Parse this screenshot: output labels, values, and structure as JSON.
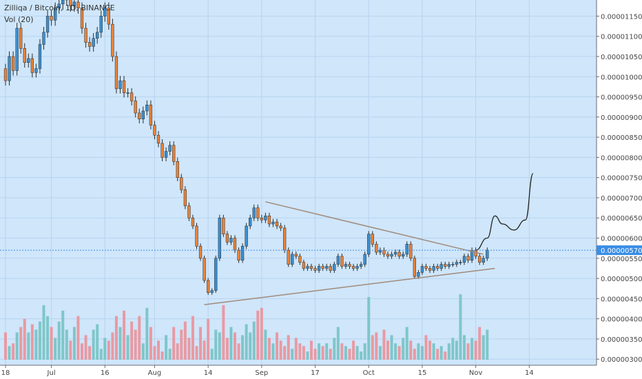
{
  "header": {
    "title": "Zilliqa / Bitcoin, 1D, BINANCE",
    "volume_label": "Vol (20)"
  },
  "colors": {
    "background": "#cfe6fb",
    "up_candle": "#3d8fcf",
    "down_candle": "#e8833a",
    "wick": "#2b2b2b",
    "vol_up": "#7fc6c9",
    "vol_down": "#e89aa3",
    "trendline": "#a08a7a",
    "price_line": "#3a8ee6",
    "price_tag": "#3a8ee6",
    "axis_bg": "#ffffff",
    "text": "#444444"
  },
  "chart_data": {
    "type": "candlestick",
    "symbol": "Zilliqa / Bitcoin, 1D, BINANCE",
    "y_axis": {
      "ylim": [
        2.85e-06,
        1.19e-05
      ],
      "ticks": [
        "0.00000300",
        "0.00000350",
        "0.00000400",
        "0.00000450",
        "0.00000500",
        "0.00000550",
        "0.00000600",
        "0.00000650",
        "0.00000700",
        "0.00000750",
        "0.00000800",
        "0.00000850",
        "0.00000900",
        "0.00000950",
        "0.00001000",
        "0.00001050",
        "0.00001100",
        "0.00001150"
      ],
      "tick_values": [
        3e-06,
        3.5e-06,
        4e-06,
        4.5e-06,
        5e-06,
        5.5e-06,
        6e-06,
        6.5e-06,
        7e-06,
        7.5e-06,
        8e-06,
        8.5e-06,
        9e-06,
        9.5e-06,
        1e-05,
        1.05e-05,
        1.1e-05,
        1.15e-05
      ]
    },
    "x_axis": {
      "labels": [
        "18",
        "Jul",
        "16",
        "Aug",
        "14",
        "Sep",
        "17",
        "Oct",
        "15",
        "Nov",
        "14"
      ],
      "label_days": [
        0,
        12,
        26,
        39,
        53,
        67,
        81,
        95,
        109,
        123,
        137
      ]
    },
    "current_price": {
      "value": 5.7e-06,
      "label": "0.00000570"
    },
    "closes": [
      9.9e-06,
      1.05e-05,
      1.015e-05,
      1.12e-05,
      1.07e-05,
      1.035e-05,
      1.045e-05,
      1.01e-05,
      1.02e-05,
      1.08e-05,
      1.11e-05,
      1.15e-05,
      1.14e-05,
      1.17e-05,
      1.18e-05,
      1.19e-05,
      1.195e-05,
      1.175e-05,
      1.185e-05,
      1.17e-05,
      1.12e-05,
      1.085e-05,
      1.075e-05,
      1.095e-05,
      1.11e-05,
      1.15e-05,
      1.17e-05,
      1.13e-05,
      1.05e-05,
      9.7e-06,
      9.9e-06,
      9.6e-06,
      9.6e-06,
      9.4e-06,
      9.1e-06,
      8.95e-06,
      9.15e-06,
      9.3e-06,
      8.8e-06,
      8.55e-06,
      8.35e-06,
      8e-06,
      8.15e-06,
      8.3e-06,
      7.9e-06,
      7.5e-06,
      7.2e-06,
      6.8e-06,
      6.5e-06,
      6.3e-06,
      5.8e-06,
      5.5e-06,
      4.95e-06,
      4.65e-06,
      4.7e-06,
      5.5e-06,
      6.5e-06,
      6.1e-06,
      5.9e-06,
      6e-06,
      5.7e-06,
      5.45e-06,
      5.8e-06,
      6.3e-06,
      6.5e-06,
      6.75e-06,
      6.5e-06,
      6.45e-06,
      6.55e-06,
      6.35e-06,
      6.4e-06,
      6.3e-06,
      6.25e-06,
      5.7e-06,
      5.35e-06,
      5.6e-06,
      5.55e-06,
      5.4e-06,
      5.25e-06,
      5.3e-06,
      5.25e-06,
      5.2e-06,
      5.3e-06,
      5.25e-06,
      5.3e-06,
      5.2e-06,
      5.35e-06,
      5.55e-06,
      5.3e-06,
      5.35e-06,
      5.3e-06,
      5.25e-06,
      5.3e-06,
      5.35e-06,
      5.6e-06,
      6.1e-06,
      5.85e-06,
      5.65e-06,
      5.7e-06,
      5.6e-06,
      5.55e-06,
      5.6e-06,
      5.65e-06,
      5.55e-06,
      5.6e-06,
      5.85e-06,
      5.5e-06,
      5.05e-06,
      5.15e-06,
      5.3e-06,
      5.25e-06,
      5.2e-06,
      5.3e-06,
      5.25e-06,
      5.35e-06,
      5.3e-06,
      5.35e-06,
      5.35e-06,
      5.4e-06,
      5.4e-06,
      5.55e-06,
      5.45e-06,
      5.7e-06,
      5.55e-06,
      5.4e-06,
      5.5e-06,
      5.7e-06
    ],
    "volumes": [
      0.5,
      0.25,
      0.3,
      0.5,
      0.6,
      0.75,
      0.5,
      0.65,
      0.55,
      0.7,
      1.0,
      0.8,
      0.6,
      0.4,
      0.7,
      0.9,
      0.55,
      0.35,
      0.6,
      0.8,
      0.3,
      0.45,
      0.25,
      0.55,
      0.65,
      0.2,
      0.4,
      0.35,
      0.5,
      0.8,
      0.6,
      0.9,
      0.45,
      0.7,
      0.55,
      0.8,
      0.3,
      0.95,
      0.6,
      0.25,
      0.35,
      0.15,
      0.45,
      0.2,
      0.6,
      0.3,
      0.55,
      0.7,
      0.4,
      0.8,
      0.25,
      0.6,
      0.35,
      0.75,
      0.2,
      0.55,
      0.5,
      1.0,
      0.4,
      0.6,
      0.5,
      0.3,
      0.45,
      0.65,
      0.5,
      0.7,
      0.9,
      0.95,
      0.55,
      0.4,
      0.3,
      0.5,
      0.35,
      0.25,
      0.45,
      0.2,
      0.4,
      0.3,
      0.25,
      0.15,
      0.35,
      0.2,
      0.3,
      0.25,
      0.3,
      0.2,
      0.4,
      0.6,
      0.3,
      0.25,
      0.2,
      0.35,
      0.25,
      0.15,
      0.3,
      1.15,
      0.45,
      0.5,
      0.25,
      0.55,
      0.35,
      0.45,
      0.3,
      0.25,
      0.4,
      0.6,
      0.35,
      0.2,
      0.3,
      0.25,
      0.45,
      0.35,
      0.3,
      0.2,
      0.25,
      0.15,
      0.3,
      0.4,
      0.35,
      1.2,
      0.45,
      0.3,
      0.4,
      0.35,
      0.6,
      0.45,
      0.55
    ],
    "trendlines": [
      {
        "from": [
          68,
          6.9e-06
        ],
        "to": [
          125,
          5.6e-06
        ]
      },
      {
        "from": [
          52,
          4.35e-06
        ],
        "to": [
          128,
          5.25e-06
        ]
      }
    ],
    "projection": [
      [
        123,
        5.7e-06
      ],
      [
        126,
        6e-06
      ],
      [
        128,
        6.55e-06
      ],
      [
        130,
        6.35e-06
      ],
      [
        133,
        6.2e-06
      ],
      [
        136,
        6.45e-06
      ],
      [
        138,
        7.6e-06
      ]
    ]
  }
}
